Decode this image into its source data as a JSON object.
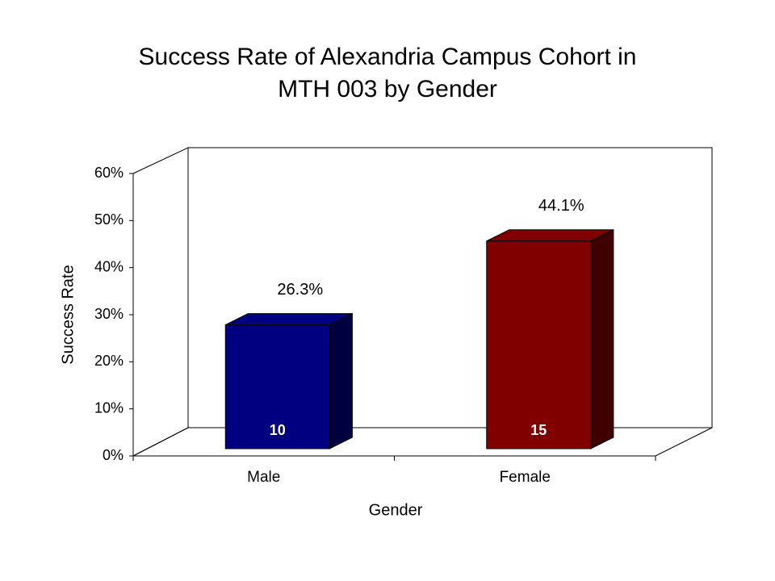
{
  "chart_data": {
    "type": "bar3d",
    "title": [
      "Success Rate of Alexandria Campus Cohort in",
      "MTH 003 by Gender"
    ],
    "x_label": "Gender",
    "y_label": "Success Rate",
    "categories": [
      "Male",
      "Female"
    ],
    "values": [
      26.3,
      44.1
    ],
    "value_labels": [
      "26.3%",
      "44.1%"
    ],
    "counts": [
      10,
      15
    ],
    "colors": [
      "#000080",
      "#800000"
    ],
    "ylim": [
      0,
      60
    ],
    "yticks": [
      {
        "value": 0,
        "label": "0%"
      },
      {
        "value": 10,
        "label": "10%"
      },
      {
        "value": 20,
        "label": "20%"
      },
      {
        "value": 30,
        "label": "30%"
      },
      {
        "value": 40,
        "label": "40%"
      },
      {
        "value": 50,
        "label": "50%"
      },
      {
        "value": 60,
        "label": "60%"
      }
    ]
  }
}
